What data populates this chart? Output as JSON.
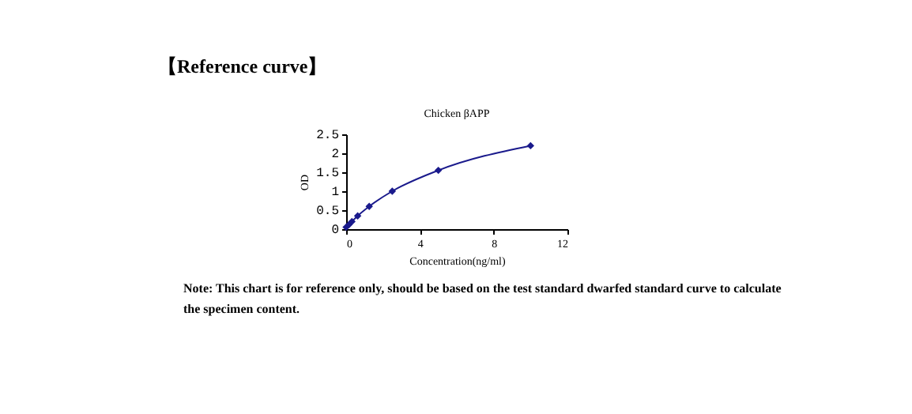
{
  "chart_data": {
    "type": "line",
    "title": "Chicken βAPP",
    "xlabel": "Concentration(ng/ml)",
    "ylabel": "OD",
    "x": [
      0,
      0.156,
      0.312,
      0.625,
      1.25,
      2.5,
      5,
      10
    ],
    "series": [
      {
        "color": "#1a1a8c",
        "values": [
          0.05,
          0.12,
          0.2,
          0.35,
          0.6,
          1.0,
          1.55,
          2.2
        ]
      }
    ],
    "xlim": [
      0,
      12
    ],
    "xticks": [
      0,
      4,
      8,
      12
    ],
    "ylim": [
      0,
      2.5
    ],
    "yticks": [
      0,
      0.5,
      1,
      1.5,
      2,
      2.5
    ],
    "grid": false,
    "marker": "diamond",
    "line_style": "solid",
    "annotations": [
      "【Reference curve】",
      "Note: This chart is for reference only, should be based on the test standard dwarfed standard curve to calculate the specimen content."
    ]
  }
}
